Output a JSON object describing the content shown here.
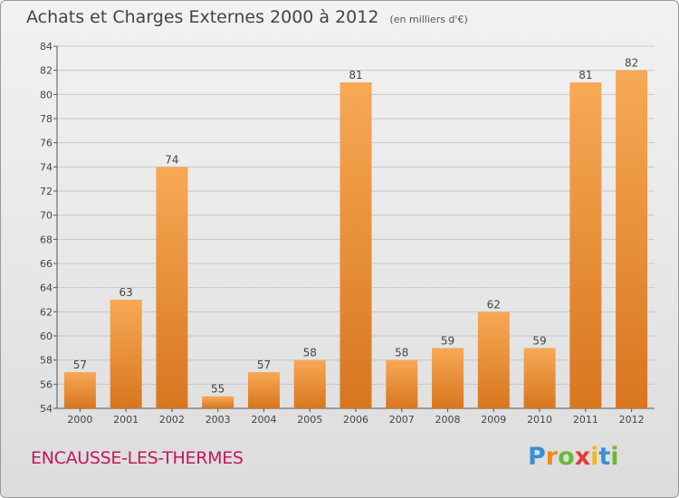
{
  "header": {
    "title": "Achats et Charges Externes 2000 à 2012",
    "subtitle": "(en milliers d'€)"
  },
  "footer": {
    "commune": "ENCAUSSE-LES-THERMES",
    "brand_letters": [
      "P",
      "r",
      "o",
      "x",
      "i",
      "t",
      "i"
    ],
    "brand_colors": [
      "#3a8fd8",
      "#f08a1c",
      "#6bb83a",
      "#e23a3a",
      "#f0b81c",
      "#3a8fd8",
      "#6bb83a"
    ]
  },
  "colors": {
    "bar_light": "#f7a955",
    "bar_dark": "#d8761f",
    "grid": "#c8c8c8",
    "axis_text": "#444444"
  },
  "chart_data": {
    "type": "bar",
    "categories": [
      "2000",
      "2001",
      "2002",
      "2003",
      "2004",
      "2005",
      "2006",
      "2007",
      "2008",
      "2009",
      "2010",
      "2011",
      "2012"
    ],
    "values": [
      57,
      63,
      74,
      55,
      57,
      58,
      81,
      58,
      59,
      62,
      59,
      81,
      82
    ],
    "ylim": [
      54,
      84
    ],
    "yticks": [
      54,
      56,
      58,
      60,
      62,
      64,
      66,
      68,
      70,
      72,
      74,
      76,
      78,
      80,
      82,
      84
    ],
    "grid": true,
    "data_labels": true
  }
}
